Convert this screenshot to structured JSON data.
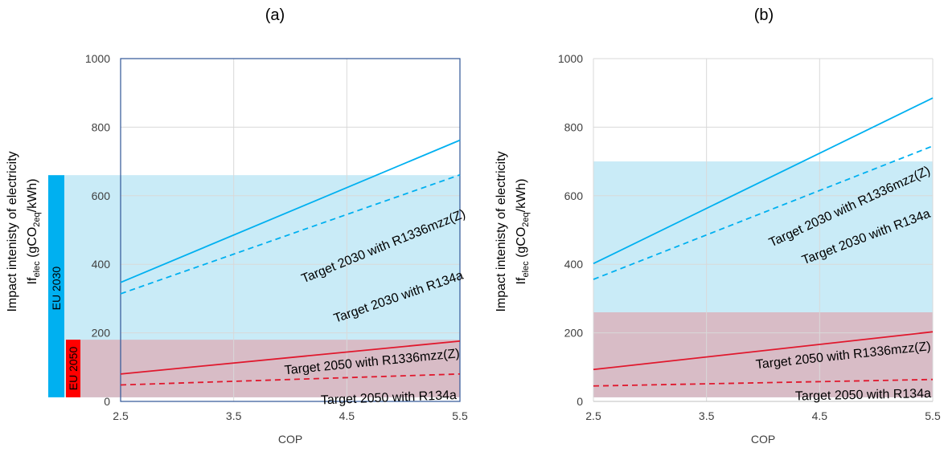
{
  "chart_data": [
    {
      "type": "line",
      "panel_label": "(a)",
      "xlabel": "COP",
      "ylabel_line1": "Impact intenisty of electricity",
      "ylabel_line2": {
        "main": "If",
        "sub1": "elec",
        "mid": " (gCO",
        "sub2": "2eq",
        "tail": "/kWh)"
      },
      "xlim": [
        2.5,
        5.5
      ],
      "ylim": [
        0,
        1000
      ],
      "xticks": [
        "2.5",
        "3.5",
        "4.5",
        "5.5"
      ],
      "yticks": [
        "0",
        "200",
        "400",
        "600",
        "800",
        "1000"
      ],
      "grid": true,
      "bands": [
        {
          "name": "EU 2030",
          "range": [
            0,
            660
          ],
          "color": "#c9ebf7",
          "bar_color": "#00b0f0"
        },
        {
          "name": "EU 2050",
          "range": [
            0,
            180
          ],
          "color": "#d8bcc6",
          "bar_color": "#ff0000"
        }
      ],
      "series": [
        {
          "name": "Target 2030 with R1336mzz(Z)",
          "x": [
            2.5,
            5.5
          ],
          "y": [
            347,
            762
          ],
          "color": "#00b0f0",
          "dash": false
        },
        {
          "name": "Target 2030 with R134a",
          "x": [
            2.5,
            5.5
          ],
          "y": [
            314,
            661
          ],
          "color": "#00b0f0",
          "dash": true
        },
        {
          "name": "Target 2050 with R1336mzz(Z)",
          "x": [
            2.5,
            5.5
          ],
          "y": [
            80,
            176
          ],
          "color": "#e0182d",
          "dash": false
        },
        {
          "name": "Target 2050 with R134a",
          "x": [
            2.5,
            5.5
          ],
          "y": [
            48,
            80
          ],
          "color": "#e0182d",
          "dash": true
        }
      ]
    },
    {
      "type": "line",
      "panel_label": "(b)",
      "xlabel": "COP",
      "ylabel_line1": "Impact intenisty of electricity",
      "ylabel_line2": {
        "main": "If",
        "sub1": "elec",
        "mid": " (gCO",
        "sub2": "2eq",
        "tail": "/kWh)"
      },
      "xlim": [
        2.5,
        5.5
      ],
      "ylim": [
        0,
        1000
      ],
      "xticks": [
        "2.5",
        "3.5",
        "4.5",
        "5.5"
      ],
      "yticks": [
        "0",
        "200",
        "400",
        "600",
        "800",
        "1000"
      ],
      "grid": true,
      "bands": [
        {
          "name": "",
          "range": [
            0,
            700
          ],
          "color": "#c9ebf7"
        },
        {
          "name": "",
          "range": [
            0,
            260
          ],
          "color": "#d8bcc6"
        }
      ],
      "series": [
        {
          "name": "Target 2030 with R1336mzz(Z)",
          "x": [
            2.5,
            5.5
          ],
          "y": [
            402,
            885
          ],
          "color": "#00b0f0",
          "dash": false
        },
        {
          "name": "Target 2030 with R134a",
          "x": [
            2.5,
            5.5
          ],
          "y": [
            356,
            745
          ],
          "color": "#00b0f0",
          "dash": true
        },
        {
          "name": "Target 2050 with R1336mzz(Z)",
          "x": [
            2.5,
            5.5
          ],
          "y": [
            93,
            203
          ],
          "color": "#e0182d",
          "dash": false
        },
        {
          "name": "Target 2050 with R134a",
          "x": [
            2.5,
            5.5
          ],
          "y": [
            45,
            64
          ],
          "color": "#e0182d",
          "dash": true
        }
      ]
    }
  ]
}
